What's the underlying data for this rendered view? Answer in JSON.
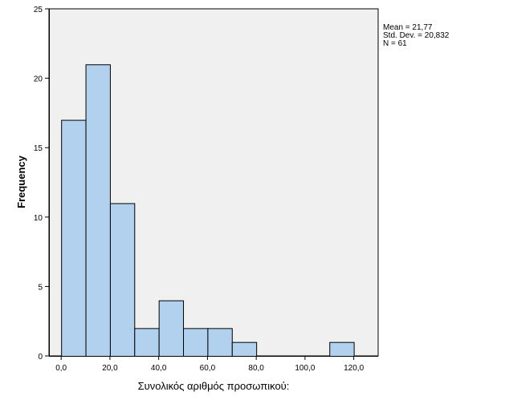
{
  "chart_data": {
    "type": "bar",
    "bins": [
      {
        "start": 0,
        "end": 10,
        "value": 17
      },
      {
        "start": 10,
        "end": 20,
        "value": 21
      },
      {
        "start": 20,
        "end": 30,
        "value": 11
      },
      {
        "start": 30,
        "end": 40,
        "value": 2
      },
      {
        "start": 40,
        "end": 50,
        "value": 4
      },
      {
        "start": 50,
        "end": 60,
        "value": 2
      },
      {
        "start": 60,
        "end": 70,
        "value": 2
      },
      {
        "start": 70,
        "end": 80,
        "value": 1
      },
      {
        "start": 110,
        "end": 120,
        "value": 1
      }
    ],
    "xlabel": "Συνολικός αριθμός προσωπικού:",
    "ylabel": "Frequency",
    "xlim": [
      -5,
      130
    ],
    "ylim": [
      0,
      25
    ],
    "x_ticks": [
      "0,0",
      "20,0",
      "40,0",
      "60,0",
      "80,0",
      "100,0",
      "120,0"
    ],
    "y_ticks": [
      "0",
      "5",
      "10",
      "15",
      "20",
      "25"
    ],
    "stats": [
      "Mean = 21,77",
      "Std. Dev. = 20,832",
      "N = 61"
    ],
    "grid": false,
    "colors": {
      "bar_fill": "#b1d1ee",
      "bar_stroke": "#000000",
      "plot_background": "#f0f0f0"
    }
  }
}
